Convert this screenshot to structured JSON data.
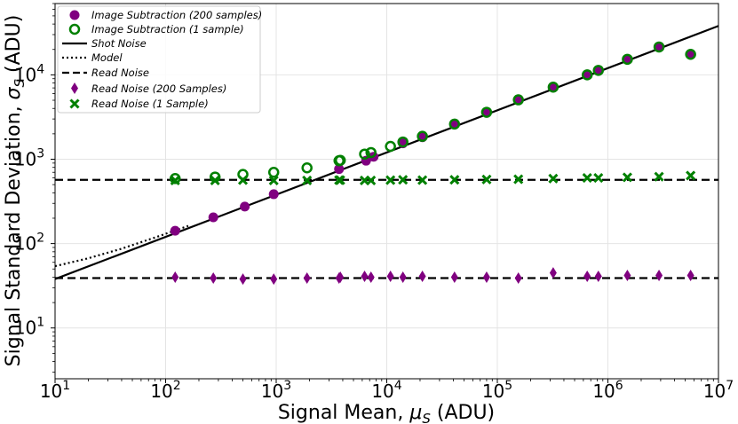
{
  "chart_data": {
    "type": "scatter",
    "title": "",
    "xlabel": "Signal Mean, $\\mu_S$ (ADU)",
    "ylabel": "Signal Standard Deviation, $\\sigma_S$ (ADU)",
    "xlabel_main": "Signal Mean, ",
    "xlabel_sym": "μ",
    "xlabel_sub": "S",
    "xlabel_unit": " (ADU)",
    "ylabel_main": "Signal Standard Deviation, ",
    "ylabel_sym": "σ",
    "ylabel_sub": "S",
    "ylabel_unit": " (ADU)",
    "xscale": "log",
    "yscale": "log",
    "xlim": [
      10,
      10000000
    ],
    "ylim": [
      2.5,
      70000
    ],
    "grid": true,
    "legend_position": "top-left",
    "xticks": [
      {
        "value": 10,
        "base": "10",
        "exp": "1"
      },
      {
        "value": 100,
        "base": "10",
        "exp": "2"
      },
      {
        "value": 1000,
        "base": "10",
        "exp": "3"
      },
      {
        "value": 10000,
        "base": "10",
        "exp": "4"
      },
      {
        "value": 100000,
        "base": "10",
        "exp": "5"
      },
      {
        "value": 1000000,
        "base": "10",
        "exp": "6"
      },
      {
        "value": 10000000,
        "base": "10",
        "exp": "7"
      }
    ],
    "yticks": [
      {
        "value": 10,
        "base": "10",
        "exp": "1"
      },
      {
        "value": 100,
        "base": "10",
        "exp": "2"
      },
      {
        "value": 1000,
        "base": "10",
        "exp": "3"
      },
      {
        "value": 10000,
        "base": "10",
        "exp": "4"
      }
    ],
    "series": [
      {
        "name": "Image Subtraction (200 samples)",
        "kind": "marker",
        "marker": "circle-filled",
        "color": "#800080",
        "x": [
          122,
          270,
          520,
          950,
          3700,
          6500,
          7600,
          14000,
          21000,
          41000,
          80000,
          155000,
          320000,
          650000,
          820000,
          1500000,
          2900000,
          5600000
        ],
        "y": [
          142,
          205,
          275,
          385,
          765,
          960,
          1070,
          1540,
          1820,
          2600,
          3580,
          5040,
          7150,
          10000,
          11300,
          15300,
          21400,
          17500
        ]
      },
      {
        "name": "Image Subtraction (1 sample)",
        "kind": "marker",
        "marker": "circle-open",
        "color": "#008000",
        "x": [
          122,
          280,
          500,
          950,
          1900,
          3700,
          3800,
          6300,
          7200,
          10800,
          14000,
          21000,
          41000,
          80000,
          155000,
          320000,
          650000,
          820000,
          1500000,
          2900000,
          5600000
        ],
        "y": [
          590,
          615,
          660,
          700,
          790,
          960,
          970,
          1150,
          1200,
          1420,
          1600,
          1870,
          2610,
          3600,
          5060,
          7150,
          10000,
          11300,
          15300,
          21400,
          17500
        ]
      },
      {
        "name": "Shot Noise",
        "kind": "line",
        "dash": "solid",
        "color": "#000000",
        "x": [
          10,
          10000000
        ],
        "y": [
          38,
          38000
        ]
      },
      {
        "name": "Model",
        "kind": "line",
        "dash": "dotted",
        "color": "#000000",
        "x": [
          10,
          20,
          40,
          80,
          160
        ],
        "y": [
          54,
          67,
          87,
          118,
          162
        ]
      },
      {
        "name": "Read Noise",
        "kind": "line",
        "dash": "dashed",
        "color": "#000000",
        "segments": [
          {
            "x": [
              10,
              10000000
            ],
            "y": [
              570,
              570
            ]
          },
          {
            "x": [
              10,
              10000000
            ],
            "y": [
              39,
              39
            ]
          }
        ]
      },
      {
        "name": "Read Noise (200 Samples)",
        "kind": "marker",
        "marker": "thin-diamond",
        "color": "#800080",
        "x": [
          122,
          270,
          500,
          950,
          1900,
          3700,
          3800,
          6300,
          7200,
          10800,
          14000,
          21000,
          41000,
          80000,
          155000,
          320000,
          650000,
          820000,
          1500000,
          2900000,
          5600000
        ],
        "y": [
          40,
          39,
          38,
          38,
          39,
          39,
          40,
          41,
          40,
          41,
          40,
          41,
          40,
          40,
          39,
          45,
          41,
          41,
          42,
          42,
          42
        ]
      },
      {
        "name": "Read Noise (1 Sample)",
        "kind": "marker",
        "marker": "x-filled",
        "color": "#008000",
        "x": [
          122,
          280,
          500,
          950,
          1900,
          3700,
          3800,
          6300,
          7200,
          10800,
          14000,
          21000,
          41000,
          80000,
          155000,
          320000,
          650000,
          820000,
          1500000,
          2900000,
          5600000
        ],
        "y": [
          560,
          560,
          565,
          560,
          560,
          565,
          565,
          560,
          560,
          565,
          570,
          565,
          570,
          575,
          580,
          590,
          600,
          600,
          610,
          620,
          640
        ]
      }
    ]
  }
}
